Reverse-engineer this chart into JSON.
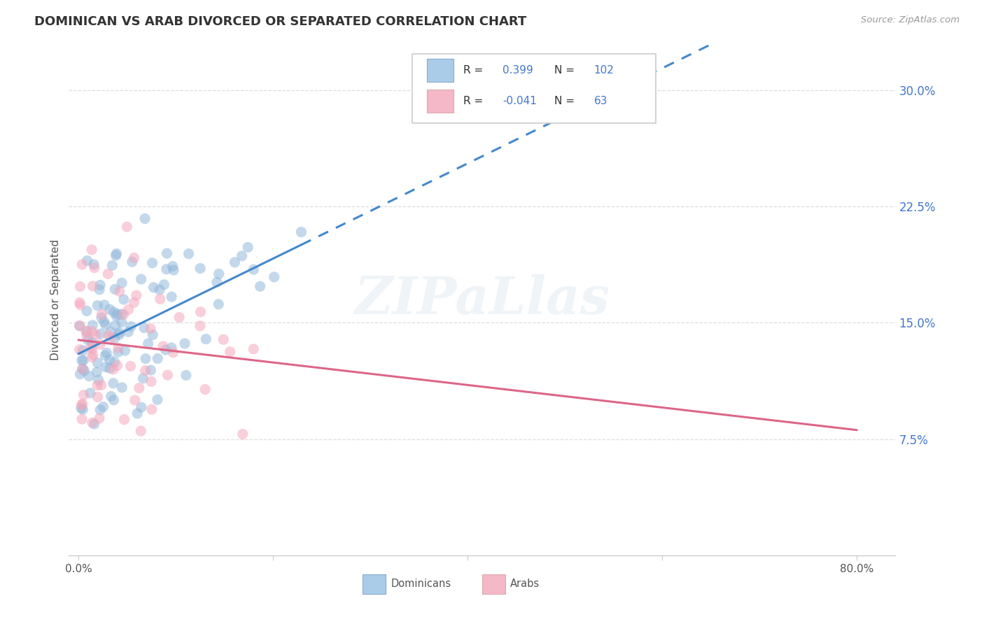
{
  "title": "DOMINICAN VS ARAB DIVORCED OR SEPARATED CORRELATION CHART",
  "source": "Source: ZipAtlas.com",
  "ylabel": "Divorced or Separated",
  "ytick_values": [
    0.075,
    0.15,
    0.225,
    0.3
  ],
  "ytick_labels": [
    "7.5%",
    "15.0%",
    "22.5%",
    "30.0%"
  ],
  "xtick_values": [
    0.0,
    0.2,
    0.4,
    0.6,
    0.8
  ],
  "xtick_labels": [
    "0.0%",
    "",
    "",
    "",
    "80.0%"
  ],
  "xlim": [
    -0.01,
    0.84
  ],
  "ylim": [
    0.0,
    0.33
  ],
  "legend_blue_r_val": "0.399",
  "legend_blue_n_val": "102",
  "legend_pink_r_val": "-0.041",
  "legend_pink_n_val": "63",
  "blue_scatter_color": "#92B8DC",
  "blue_edge_color": "none",
  "pink_scatter_color": "#F4A8BC",
  "pink_edge_color": "none",
  "trendline_blue": "#4488CC",
  "trendline_pink": "#DD6688",
  "watermark": "ZIPaLlas",
  "legend_text_color": "#4477CC",
  "grid_color": "#DDDDDD",
  "tick_label_color": "#4477CC",
  "scatter_size": 120,
  "scatter_alpha": 0.55
}
